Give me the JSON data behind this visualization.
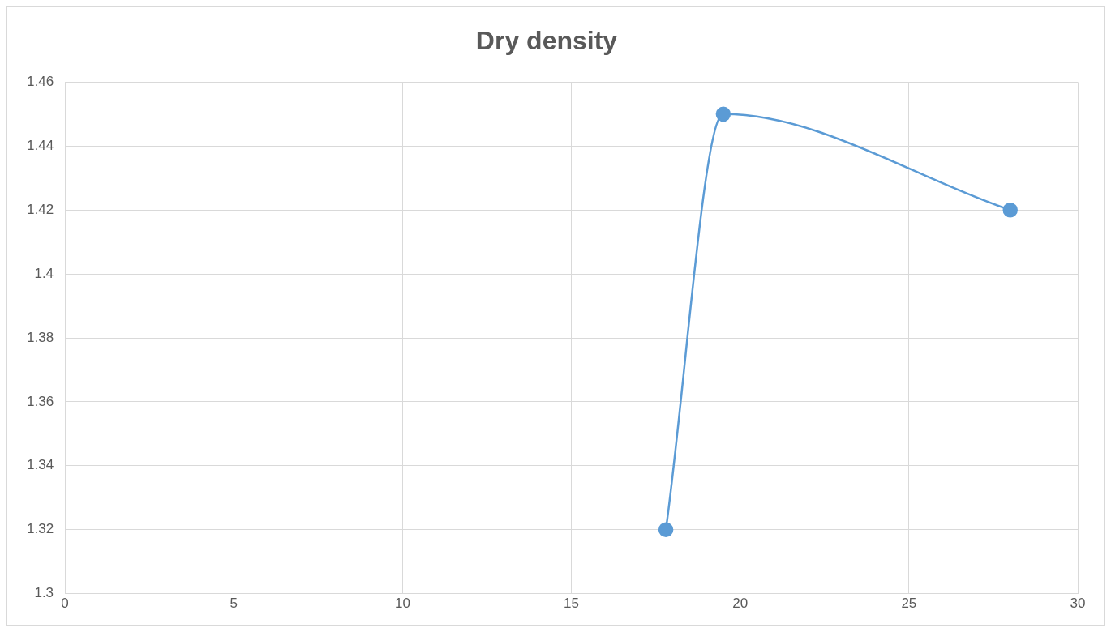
{
  "chart_data": {
    "type": "line",
    "title": "Dry density",
    "x": [
      17.8,
      19.5,
      28.0
    ],
    "series": [
      {
        "color": "#5b9bd5",
        "values": [
          1.32,
          1.45,
          1.42
        ]
      }
    ],
    "xlim": [
      0,
      30
    ],
    "xticks": [
      0,
      5,
      10,
      15,
      20,
      25,
      30
    ],
    "ylim": [
      1.3,
      1.46
    ],
    "yticks": [
      {
        "value": 1.3,
        "label": "1.3"
      },
      1.32,
      1.34,
      1.36,
      1.38,
      {
        "value": 1.4,
        "label": "1.4"
      },
      1.42,
      1.44,
      1.46
    ],
    "grid": true,
    "legend": false,
    "marker": "circle",
    "line_style": "solid"
  }
}
